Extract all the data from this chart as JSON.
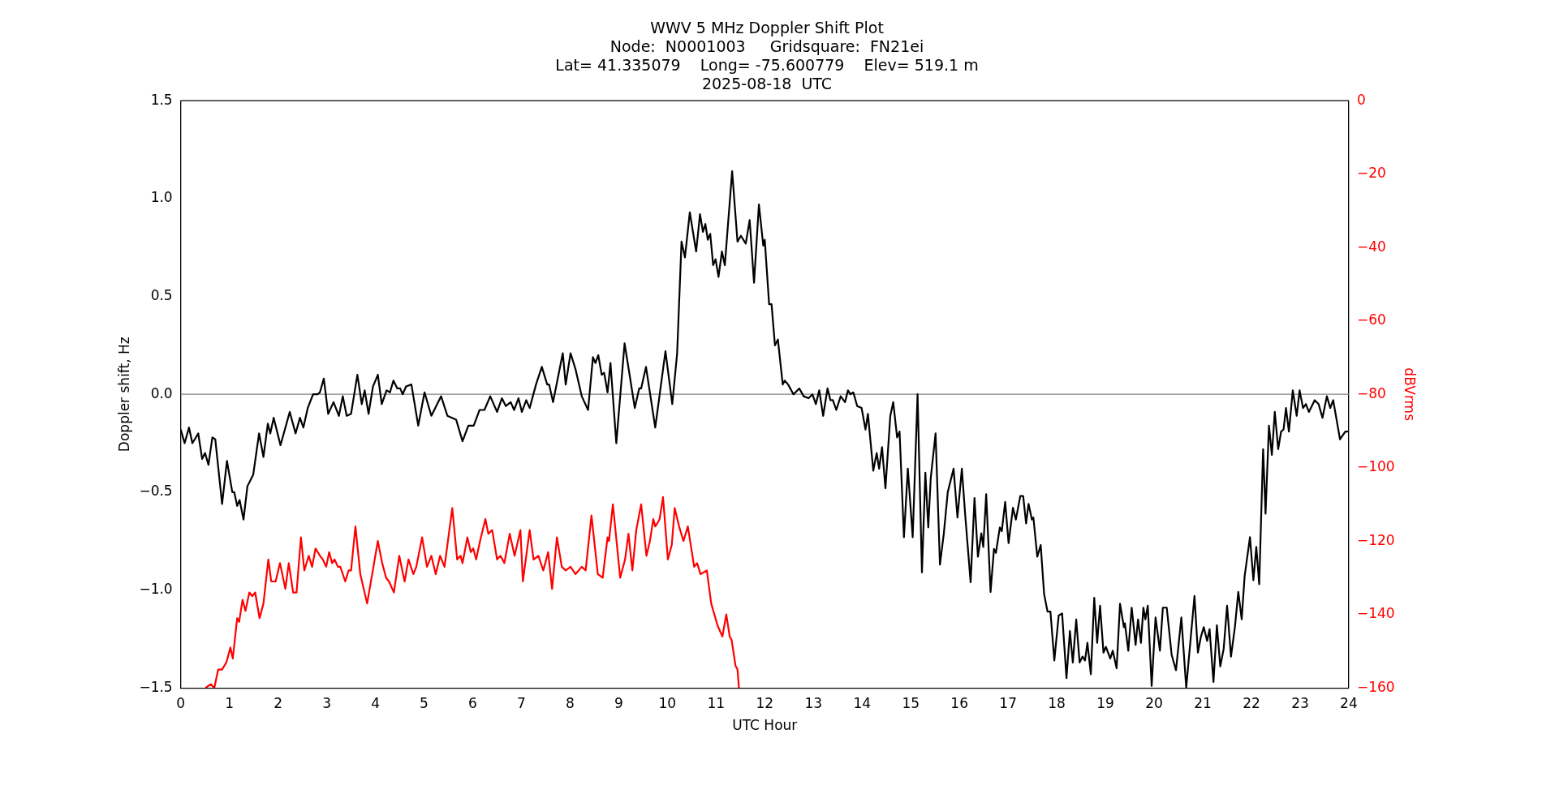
{
  "chart_data": {
    "type": "line",
    "title": "WWV 5 MHz Doppler Shift Plot",
    "subtitle": "Node:  N0001003     Gridsquare:  FN21ei\nLat= 41.335079    Long= -75.600779    Elev= 519.1 m\n2025-08-18  UTC",
    "xlabel": "UTC Hour",
    "ylabel": "Doppler shift, Hz",
    "y2label": "dBVrms",
    "marker": "none",
    "grid": false,
    "legend": false,
    "xlim": [
      0,
      24
    ],
    "xticks": [
      0,
      1,
      2,
      3,
      4,
      5,
      6,
      7,
      8,
      9,
      10,
      11,
      12,
      13,
      14,
      15,
      16,
      17,
      18,
      19,
      20,
      21,
      22,
      23,
      24
    ],
    "ylim": [
      -1.5,
      1.5
    ],
    "yticks": [
      {
        "value": -1.5,
        "label": "−1.5"
      },
      {
        "value": -1,
        "label": "−1.0"
      },
      {
        "value": -0.5,
        "label": "−0.5"
      },
      {
        "value": 0,
        "label": "0.0"
      },
      {
        "value": 0.5,
        "label": "0.5"
      },
      {
        "value": 1,
        "label": "1.0"
      },
      {
        "value": 1.5,
        "label": "1.5"
      }
    ],
    "y2lim": [
      -160,
      0
    ],
    "y2ticks": [
      {
        "value": -160,
        "label": "−160"
      },
      {
        "value": -140,
        "label": "−140"
      },
      {
        "value": -120,
        "label": "−120"
      },
      {
        "value": -100,
        "label": "−100"
      },
      {
        "value": -80,
        "label": "−80"
      },
      {
        "value": -60,
        "label": "−60"
      },
      {
        "value": -40,
        "label": "−40"
      },
      {
        "value": -20,
        "label": "−20"
      },
      0
    ],
    "ref_lines": [
      {
        "axis": "y",
        "value": 0,
        "color": "#808080"
      }
    ],
    "series": [
      {
        "color": "#000000",
        "x": [
          0,
          0.08,
          0.17,
          0.24,
          0.36,
          0.44,
          0.5,
          0.57,
          0.65,
          0.71,
          0.85,
          0.95,
          1.06,
          1.1,
          1.16,
          1.21,
          1.29,
          1.37,
          1.49,
          1.61,
          1.7,
          1.79,
          1.84,
          1.91,
          2.05,
          2.24,
          2.36,
          2.45,
          2.52,
          2.61,
          2.72,
          2.81,
          2.86,
          2.94,
          3.03,
          3.14,
          3.25,
          3.33,
          3.41,
          3.5,
          3.63,
          3.72,
          3.78,
          3.86,
          3.95,
          4.05,
          4.13,
          4.23,
          4.3,
          4.37,
          4.45,
          4.51,
          4.56,
          4.63,
          4.74,
          4.88,
          5.01,
          5.15,
          5.35,
          5.48,
          5.66,
          5.79,
          5.91,
          6.02,
          6.14,
          6.24,
          6.36,
          6.5,
          6.6,
          6.68,
          6.78,
          6.85,
          6.94,
          7.01,
          7.1,
          7.17,
          7.3,
          7.42,
          7.53,
          7.57,
          7.65,
          7.73,
          7.85,
          7.91,
          8.01,
          8.11,
          8.24,
          8.37,
          8.47,
          8.52,
          8.58,
          8.65,
          8.7,
          8.77,
          8.83,
          8.95,
          9.12,
          9.21,
          9.33,
          9.42,
          9.46,
          9.56,
          9.75,
          9.96,
          10.1,
          10.2,
          10.29,
          10.36,
          10.46,
          10.59,
          10.67,
          10.73,
          10.78,
          10.83,
          10.88,
          10.94,
          10.99,
          11.05,
          11.12,
          11.18,
          11.33,
          11.44,
          11.51,
          11.61,
          11.69,
          11.78,
          11.88,
          11.97,
          12,
          12.09,
          12.14,
          12.21,
          12.27,
          12.37,
          12.41,
          12.48,
          12.59,
          12.71,
          12.8,
          12.9,
          12.98,
          13.05,
          13.12,
          13.2,
          13.29,
          13.35,
          13.4,
          13.47,
          13.56,
          13.65,
          13.71,
          13.76,
          13.82,
          13.9,
          13.99,
          14.07,
          14.12,
          14.23,
          14.3,
          14.35,
          14.41,
          14.48,
          14.58,
          14.64,
          14.72,
          14.77,
          14.86,
          14.94,
          15.04,
          15.14,
          15.23,
          15.3,
          15.36,
          15.41,
          15.51,
          15.6,
          15.68,
          15.76,
          15.88,
          15.96,
          16.05,
          16.12,
          16.23,
          16.31,
          16.38,
          16.45,
          16.49,
          16.55,
          16.64,
          16.71,
          16.75,
          16.83,
          16.87,
          16.94,
          17.01,
          17.1,
          17.16,
          17.25,
          17.31,
          17.37,
          17.42,
          17.49,
          17.52,
          17.6,
          17.67,
          17.74,
          17.81,
          17.87,
          17.95,
          18.04,
          18.11,
          18.2,
          18.27,
          18.33,
          18.4,
          18.47,
          18.53,
          18.58,
          18.63,
          18.7,
          18.77,
          18.83,
          18.89,
          18.96,
          19.01,
          19.1,
          19.15,
          19.23,
          19.3,
          19.38,
          19.4,
          19.47,
          19.54,
          19.62,
          19.67,
          19.73,
          19.78,
          19.82,
          19.87,
          19.95,
          20.03,
          20.12,
          20.18,
          20.26,
          20.36,
          20.45,
          20.56,
          20.66,
          20.83,
          20.9,
          20.96,
          21.02,
          21.09,
          21.14,
          21.22,
          21.29,
          21.36,
          21.43,
          21.5,
          21.58,
          21.66,
          21.73,
          21.8,
          21.86,
          21.97,
          22.04,
          22.1,
          22.16,
          22.24,
          22.29,
          22.36,
          22.42,
          22.48,
          22.55,
          22.61,
          22.66,
          22.71,
          22.77,
          22.85,
          22.93,
          22.99,
          23.06,
          23.12,
          23.18,
          23.3,
          23.38,
          23.46,
          23.55,
          23.62,
          23.68,
          23.82,
          23.93,
          24
        ],
        "values": [
          -0.18,
          -0.25,
          -0.17,
          -0.25,
          -0.2,
          -0.33,
          -0.3,
          -0.36,
          -0.22,
          -0.23,
          -0.56,
          -0.34,
          -0.5,
          -0.5,
          -0.57,
          -0.54,
          -0.64,
          -0.47,
          -0.41,
          -0.2,
          -0.32,
          -0.15,
          -0.2,
          -0.12,
          -0.26,
          -0.09,
          -0.2,
          -0.12,
          -0.17,
          -0.07,
          0,
          0,
          0.01,
          0.08,
          -0.1,
          -0.04,
          -0.11,
          -0.01,
          -0.11,
          -0.1,
          0.1,
          -0.05,
          0.02,
          -0.1,
          0.04,
          0.1,
          -0.05,
          0.02,
          0.01,
          0.07,
          0.03,
          0.03,
          0,
          0.04,
          0.05,
          -0.16,
          0.01,
          -0.11,
          -0.01,
          -0.11,
          -0.13,
          -0.24,
          -0.16,
          -0.16,
          -0.08,
          -0.08,
          -0.01,
          -0.09,
          -0.02,
          -0.06,
          -0.04,
          -0.08,
          -0.02,
          -0.09,
          -0.03,
          -0.07,
          0.05,
          0.14,
          0.05,
          0.05,
          -0.04,
          0.06,
          0.21,
          0.05,
          0.21,
          0.13,
          -0.01,
          -0.08,
          0.19,
          0.16,
          0.2,
          0.1,
          0.11,
          0.01,
          0.16,
          -0.25,
          0.26,
          0.12,
          -0.07,
          0.03,
          0.03,
          0.14,
          -0.17,
          0.22,
          -0.05,
          0.21,
          0.78,
          0.7,
          0.93,
          0.73,
          0.92,
          0.83,
          0.87,
          0.79,
          0.82,
          0.66,
          0.69,
          0.6,
          0.73,
          0.66,
          1.14,
          0.78,
          0.81,
          0.77,
          0.89,
          0.57,
          0.97,
          0.76,
          0.79,
          0.46,
          0.46,
          0.25,
          0.28,
          0.05,
          0.07,
          0.05,
          0,
          0.03,
          -0.01,
          -0.02,
          0,
          -0.05,
          0.02,
          -0.11,
          0.03,
          -0.03,
          -0.03,
          -0.08,
          -0.01,
          -0.04,
          0.02,
          0,
          0.01,
          -0.06,
          -0.07,
          -0.18,
          -0.1,
          -0.39,
          -0.3,
          -0.38,
          -0.27,
          -0.48,
          -0.11,
          -0.04,
          -0.22,
          -0.19,
          -0.73,
          -0.38,
          -0.73,
          0,
          -0.91,
          -0.4,
          -0.68,
          -0.43,
          -0.2,
          -0.87,
          -0.71,
          -0.5,
          -0.38,
          -0.63,
          -0.38,
          -0.62,
          -0.96,
          -0.53,
          -0.83,
          -0.71,
          -0.78,
          -0.51,
          -1.01,
          -0.79,
          -0.81,
          -0.68,
          -0.7,
          -0.55,
          -0.76,
          -0.58,
          -0.64,
          -0.52,
          -0.52,
          -0.66,
          -0.56,
          -0.64,
          -0.63,
          -0.83,
          -0.77,
          -1.02,
          -1.11,
          -1.11,
          -1.36,
          -1.13,
          -1.12,
          -1.45,
          -1.21,
          -1.37,
          -1.15,
          -1.37,
          -1.34,
          -1.36,
          -1.27,
          -1.43,
          -1.04,
          -1.27,
          -1.08,
          -1.32,
          -1.29,
          -1.35,
          -1.31,
          -1.4,
          -1.07,
          -1.19,
          -1.17,
          -1.31,
          -1.09,
          -1.28,
          -1.15,
          -1.27,
          -1.09,
          -1.15,
          -1.08,
          -1.49,
          -1.14,
          -1.31,
          -1.09,
          -1.09,
          -1.33,
          -1.41,
          -1.14,
          -1.5,
          -1.03,
          -1.32,
          -1.24,
          -1.19,
          -1.26,
          -1.2,
          -1.47,
          -1.18,
          -1.39,
          -1.3,
          -1.08,
          -1.34,
          -1.19,
          -1.01,
          -1.15,
          -0.93,
          -0.73,
          -0.95,
          -0.78,
          -0.97,
          -0.28,
          -0.61,
          -0.16,
          -0.31,
          -0.09,
          -0.28,
          -0.19,
          -0.18,
          -0.07,
          -0.19,
          0.02,
          -0.11,
          0.02,
          -0.07,
          -0.05,
          -0.09,
          -0.03,
          -0.05,
          -0.12,
          -0.01,
          -0.07,
          -0.03,
          -0.23,
          -0.19,
          -0.19
        ]
      },
      {
        "color": "#ff0000",
        "axis": "y2",
        "x": [
          0.51,
          0.62,
          0.69,
          0.77,
          0.85,
          0.94,
          1.02,
          1.07,
          1.16,
          1.2,
          1.27,
          1.33,
          1.41,
          1.47,
          1.53,
          1.62,
          1.7,
          1.8,
          1.86,
          1.95,
          2.04,
          2.15,
          2.22,
          2.31,
          2.38,
          2.47,
          2.54,
          2.63,
          2.7,
          2.77,
          2.86,
          2.92,
          2.99,
          3.05,
          3.11,
          3.16,
          3.23,
          3.28,
          3.38,
          3.45,
          3.5,
          3.59,
          3.69,
          3.83,
          3.96,
          4.05,
          4.14,
          4.22,
          4.28,
          4.38,
          4.49,
          4.6,
          4.68,
          4.78,
          4.84,
          4.96,
          5.06,
          5.15,
          5.24,
          5.33,
          5.42,
          5.58,
          5.68,
          5.75,
          5.79,
          5.89,
          5.96,
          6.01,
          6.07,
          6.15,
          6.26,
          6.32,
          6.4,
          6.5,
          6.57,
          6.65,
          6.76,
          6.86,
          6.98,
          7.03,
          7.17,
          7.25,
          7.35,
          7.45,
          7.55,
          7.63,
          7.73,
          7.83,
          7.91,
          8.01,
          8.11,
          8.24,
          8.32,
          8.44,
          8.57,
          8.67,
          8.77,
          8.8,
          8.88,
          9.03,
          9.13,
          9.2,
          9.28,
          9.36,
          9.46,
          9.57,
          9.64,
          9.71,
          9.75,
          9.8,
          9.84,
          9.91,
          10.01,
          10.09,
          10.15,
          10.24,
          10.33,
          10.42,
          10.55,
          10.61,
          10.68,
          10.81,
          10.9,
          11.03,
          11.13,
          11.21,
          11.28,
          11.32,
          11.4,
          11.44,
          11.47
        ],
        "values": [
          -160,
          -159,
          -160,
          -155,
          -155,
          -153,
          -149,
          -152,
          -141,
          -142,
          -136,
          -139,
          -134,
          -135,
          -134,
          -141,
          -137,
          -125,
          -131,
          -131,
          -126,
          -133,
          -126,
          -134,
          -134,
          -119,
          -128,
          -124,
          -127,
          -122,
          -124,
          -125,
          -127,
          -123,
          -126,
          -125,
          -127,
          -127,
          -131,
          -128,
          -128,
          -116,
          -129,
          -137,
          -127,
          -120,
          -126,
          -130,
          -131,
          -134,
          -124,
          -131,
          -125,
          -129,
          -127,
          -119,
          -127,
          -124,
          -129,
          -124,
          -127,
          -111,
          -125,
          -124,
          -126,
          -119,
          -123,
          -122,
          -125,
          -120,
          -114,
          -118,
          -117,
          -125,
          -124,
          -126,
          -118,
          -124,
          -117,
          -131,
          -117,
          -125,
          -124,
          -128,
          -123,
          -133,
          -119,
          -127,
          -128,
          -127,
          -129,
          -127,
          -128,
          -113,
          -129,
          -130,
          -119,
          -120,
          -110,
          -130,
          -125,
          -118,
          -128,
          -117,
          -110,
          -124,
          -120,
          -114,
          -116,
          -115,
          -114,
          -108,
          -125,
          -121,
          -111,
          -116,
          -120,
          -116,
          -127,
          -126,
          -129,
          -128,
          -137,
          -143,
          -146,
          -140,
          -146,
          -147,
          -154,
          -155,
          -160
        ]
      }
    ]
  }
}
